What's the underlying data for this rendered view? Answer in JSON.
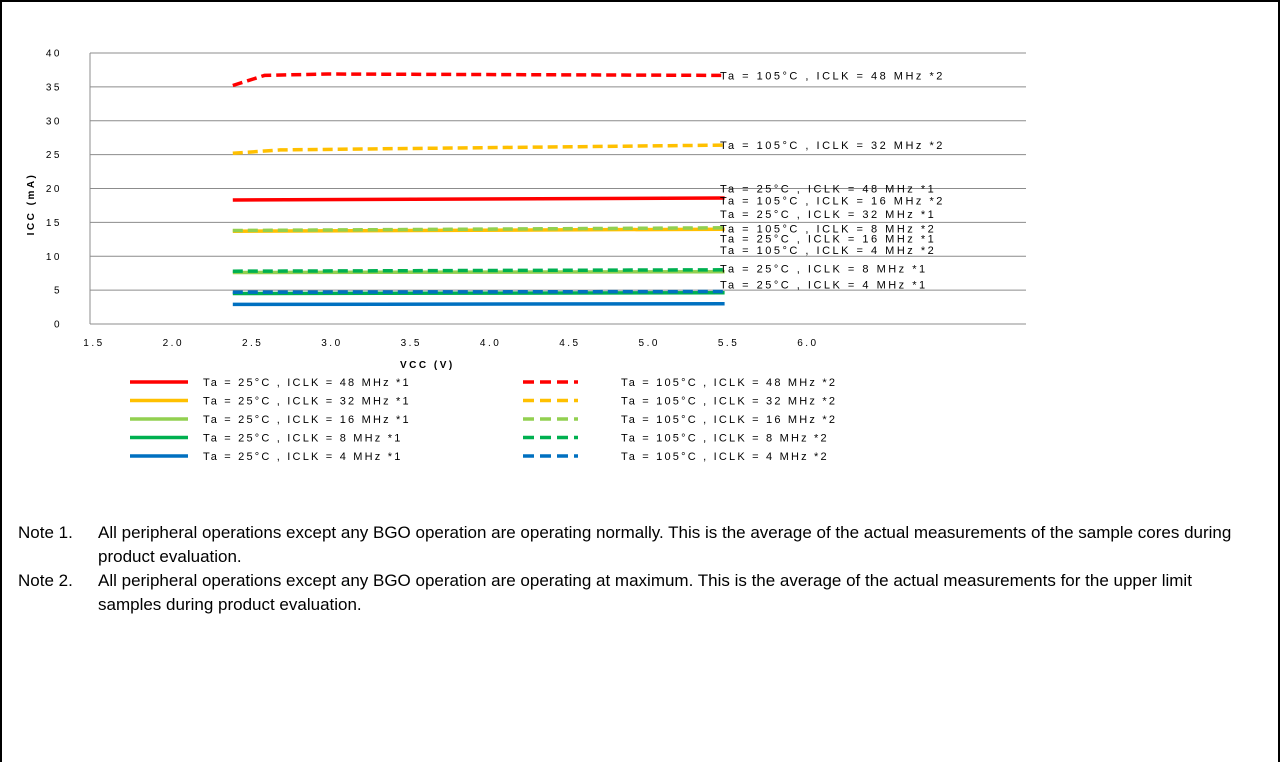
{
  "chart_data": {
    "type": "line",
    "xlabel": "VCC (V)",
    "ylabel": "ICC (mA)",
    "xlim": [
      1.5,
      7.4
    ],
    "ylim": [
      0,
      40
    ],
    "xticks": [
      "1.5",
      "2.0",
      "2.5",
      "3.0",
      "3.5",
      "4.0",
      "4.5",
      "5.0",
      "5.5",
      "6.0"
    ],
    "yticks": [
      "0",
      "5",
      "10",
      "15",
      "20",
      "25",
      "30",
      "35",
      "40"
    ],
    "grid": "horizontal",
    "series": [
      {
        "name": "Ta = 25°C , ICLK = 48 MHz *1",
        "color": "#ff0000",
        "dash": false,
        "x": [
          2.4,
          5.5
        ],
        "y": [
          18.3,
          18.6
        ]
      },
      {
        "name": "Ta = 25°C , ICLK = 32 MHz *1",
        "color": "#ffc000",
        "dash": false,
        "x": [
          2.4,
          5.5
        ],
        "y": [
          13.7,
          14.0
        ]
      },
      {
        "name": "Ta = 25°C , ICLK = 16 MHz *1",
        "color": "#92d050",
        "dash": false,
        "x": [
          2.4,
          5.5
        ],
        "y": [
          7.6,
          7.7
        ]
      },
      {
        "name": "Ta = 25°C , ICLK = 8 MHz *1",
        "color": "#00b050",
        "dash": false,
        "x": [
          2.4,
          5.5
        ],
        "y": [
          4.5,
          4.6
        ]
      },
      {
        "name": "Ta = 25°C , ICLK = 4 MHz *1",
        "color": "#0070c0",
        "dash": false,
        "x": [
          2.4,
          5.5
        ],
        "y": [
          2.9,
          3.0
        ]
      },
      {
        "name": "Ta = 105°C , ICLK = 48 MHz *2",
        "color": "#ff0000",
        "dash": true,
        "x": [
          2.4,
          2.6,
          3.0,
          5.5
        ],
        "y": [
          35.2,
          36.7,
          36.9,
          36.7
        ]
      },
      {
        "name": "Ta = 105°C , ICLK = 32 MHz *2",
        "color": "#ffc000",
        "dash": true,
        "x": [
          2.4,
          2.7,
          5.5
        ],
        "y": [
          25.2,
          25.7,
          26.4
        ]
      },
      {
        "name": "Ta = 105°C , ICLK = 16 MHz *2",
        "color": "#92d050",
        "dash": true,
        "x": [
          2.4,
          5.5
        ],
        "y": [
          13.8,
          14.2
        ]
      },
      {
        "name": "Ta = 105°C , ICLK = 8 MHz *2",
        "color": "#00b050",
        "dash": true,
        "x": [
          2.4,
          5.5
        ],
        "y": [
          7.8,
          8.0
        ]
      },
      {
        "name": "Ta = 105°C , ICLK = 4 MHz *2",
        "color": "#0070c0",
        "dash": true,
        "x": [
          2.4,
          5.5
        ],
        "y": [
          4.7,
          4.8
        ]
      }
    ],
    "annotations": [
      {
        "text": "Ta = 105°C , ICLK = 48 MHz *2",
        "y": 36.7
      },
      {
        "text": "Ta = 105°C , ICLK = 32 MHz *2",
        "y": 26.4
      },
      {
        "text": "Ta = 25°C , ICLK = 48 MHz *1",
        "y": 20.0
      },
      {
        "text": "Ta = 105°C , ICLK = 16 MHz *2",
        "y": 18.2
      },
      {
        "text": "Ta = 25°C , ICLK = 32 MHz *1",
        "y": 16.2
      },
      {
        "text": "Ta = 105°C , ICLK = 8 MHz *2",
        "y": 14.1
      },
      {
        "text": "Ta = 25°C , ICLK = 16 MHz *1",
        "y": 12.6
      },
      {
        "text": "Ta = 105°C , ICLK = 4 MHz *2",
        "y": 10.9
      },
      {
        "text": "Ta = 25°C , ICLK = 8 MHz *1",
        "y": 8.2
      },
      {
        "text": "Ta = 25°C , ICLK = 4 MHz *1",
        "y": 5.8
      }
    ],
    "legend": "bottom, two columns"
  },
  "notes": [
    {
      "label": "Note 1.",
      "text": "All peripheral operations except any BGO operation are operating normally. This is the average of the actual measurements of the sample cores during product evaluation."
    },
    {
      "label": "Note 2.",
      "text": "All peripheral operations except any BGO operation are operating at maximum. This is the average of the actual measurements for the upper limit samples during product evaluation."
    }
  ]
}
